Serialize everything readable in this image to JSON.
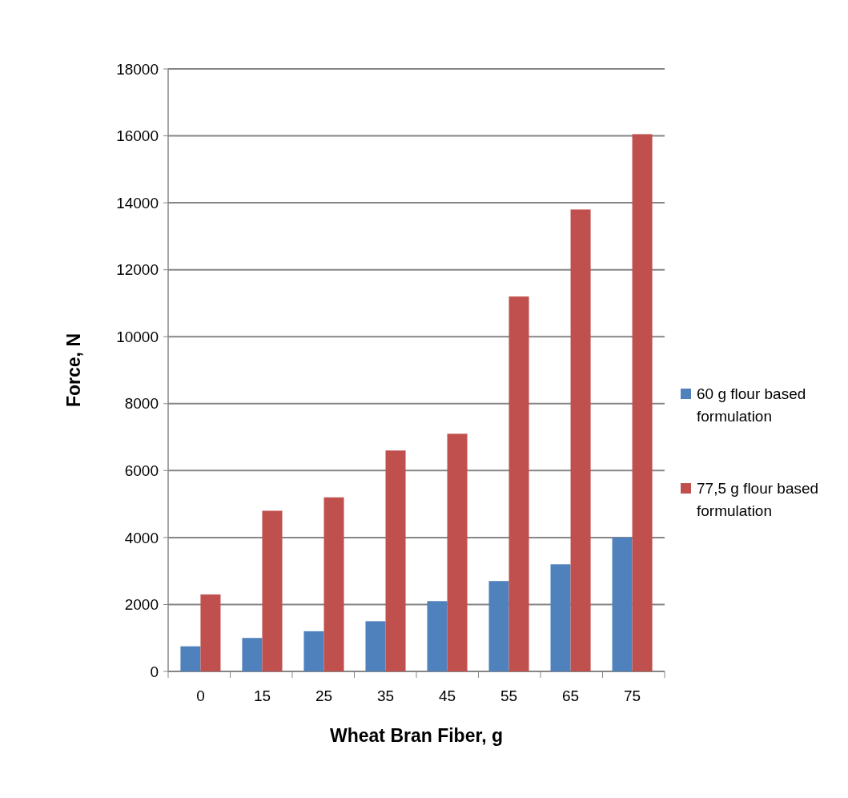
{
  "chart_data": {
    "type": "bar",
    "xlabel": "Wheat Bran Fiber, g",
    "ylabel": "Force, N",
    "categories": [
      "0",
      "15",
      "25",
      "35",
      "45",
      "55",
      "65",
      "75"
    ],
    "series": [
      {
        "name": "60 g flour based formulation",
        "color": "#4f81bd",
        "values": [
          750,
          1000,
          1200,
          1500,
          2100,
          2700,
          3200,
          4000
        ]
      },
      {
        "name": "77,5 g flour based formulation",
        "color": "#c0504d",
        "values": [
          2300,
          4800,
          5200,
          6600,
          7100,
          11200,
          13800,
          16050
        ]
      }
    ],
    "ylim": [
      0,
      18000
    ],
    "yticks": [
      0,
      2000,
      4000,
      6000,
      8000,
      10000,
      12000,
      14000,
      16000,
      18000
    ],
    "grid": "y",
    "legend": "right"
  }
}
